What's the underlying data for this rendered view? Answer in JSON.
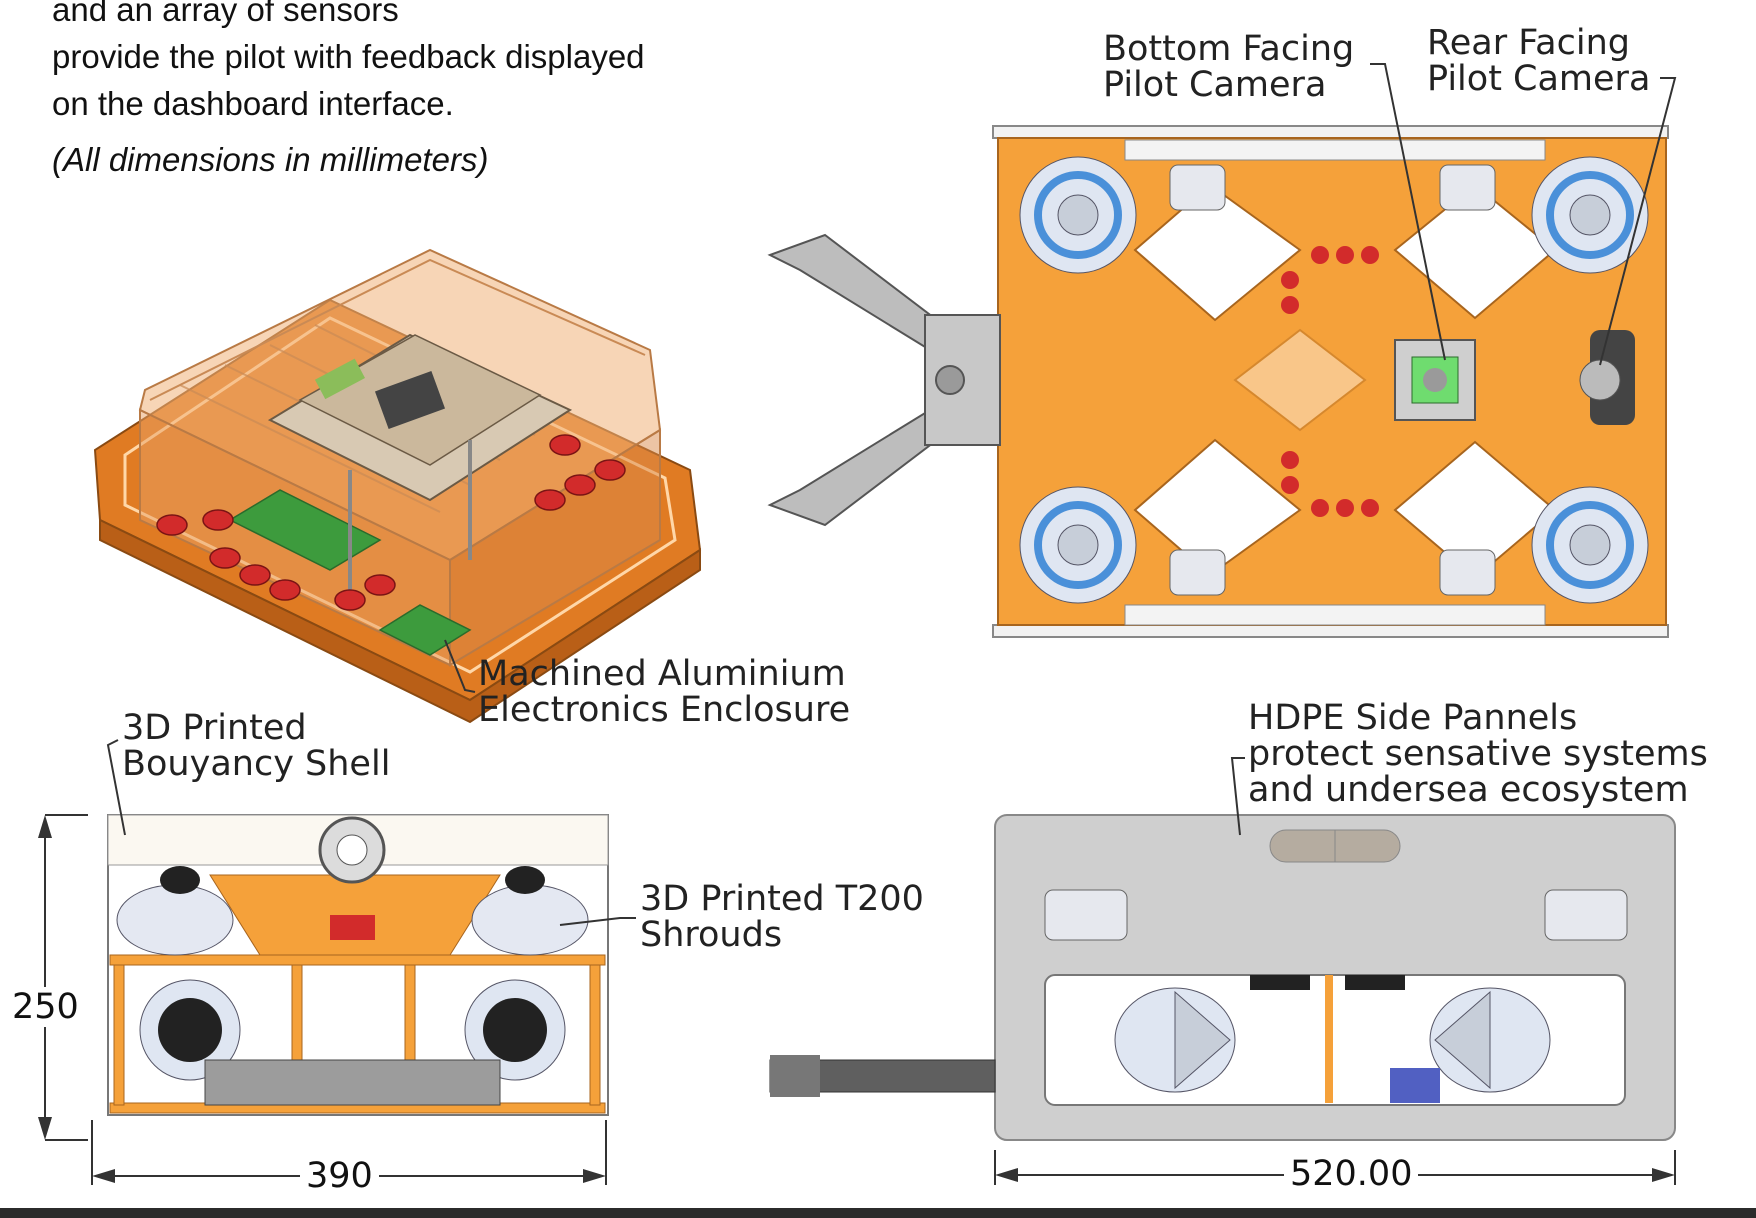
{
  "intro": {
    "line1": "and an array of sensors",
    "line2": "provide the pilot with feedback displayed",
    "line3": "on the dashboard interface.",
    "units_note": "(All dimensions in millimeters)"
  },
  "callouts": {
    "bottom_camera": [
      "Bottom Facing",
      "Pilot Camera"
    ],
    "rear_camera": [
      "Rear Facing",
      "Pilot Camera"
    ],
    "enclosure": [
      "Machined Aluminium",
      "Electronics Enclosure"
    ],
    "buoyancy": [
      "3D Printed",
      "Bouyancy Shell"
    ],
    "shrouds": [
      "3D Printed T200",
      "Shrouds"
    ],
    "side_panels": [
      "HDPE Side Pannels",
      "protect sensative systems",
      "and undersea ecosystem"
    ]
  },
  "dimensions": {
    "front_height": "250",
    "front_width": "390",
    "side_length": "520.00"
  },
  "colors": {
    "frame_orange": "#f5a13a",
    "enclosure_orange": "#e07b23",
    "grey_panel": "#cfcfcf",
    "thruster_blue": "#4a90d9",
    "connector_red": "#d22b2b",
    "pcb_green": "#3d9b3d"
  }
}
